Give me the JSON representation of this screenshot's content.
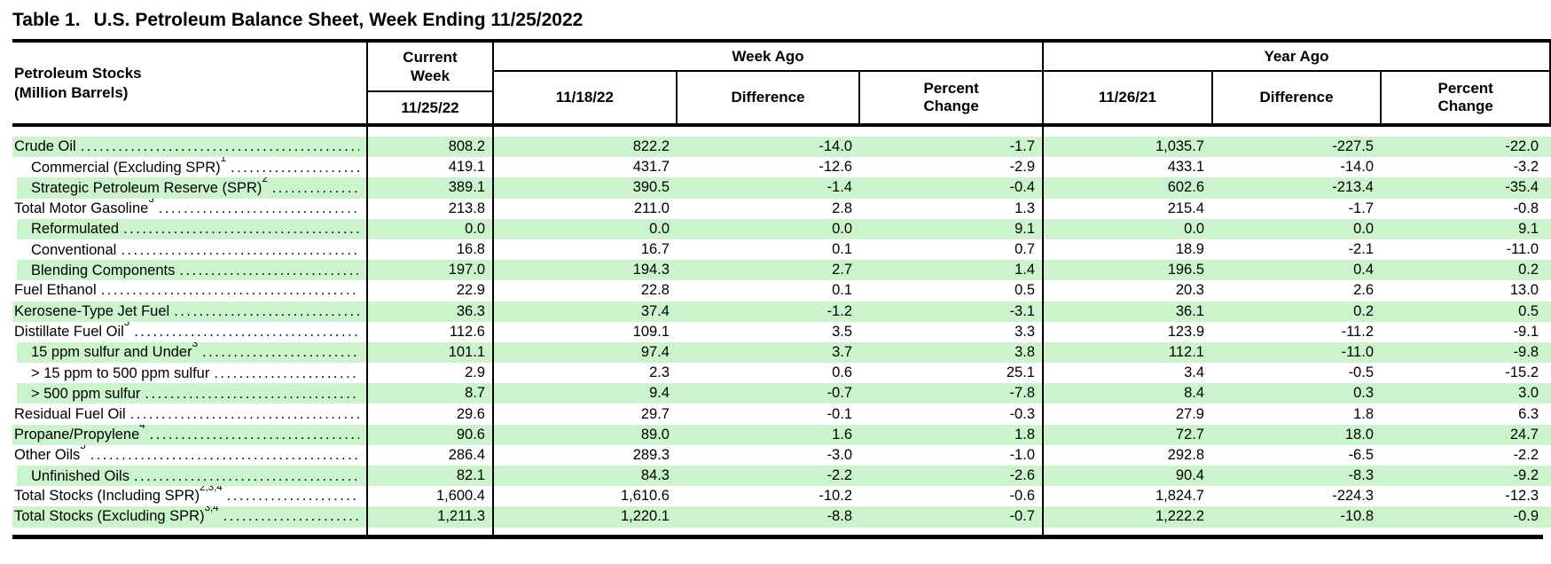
{
  "title": {
    "prefix": "Table 1.",
    "text": "U.S. Petroleum Balance Sheet, Week Ending 11/25/2022"
  },
  "colors": {
    "highlight_green": "#ccf4cc",
    "border": "#000000",
    "text": "#000000"
  },
  "table": {
    "row_header": {
      "line1": "Petroleum Stocks",
      "line2": "(Million Barrels)"
    },
    "col_groups": {
      "current_week": {
        "label": "Current\nWeek",
        "sub": "11/25/22"
      },
      "week_ago": {
        "label": "Week Ago",
        "subs": [
          "11/18/22",
          "Difference",
          "Percent\nChange"
        ]
      },
      "year_ago": {
        "label": "Year Ago",
        "subs": [
          "11/26/21",
          "Difference",
          "Percent\nChange"
        ]
      }
    },
    "rows": [
      {
        "label": "Crude Oil",
        "sup": "",
        "indent": 0,
        "highlight": true,
        "values": [
          "808.2",
          "822.2",
          "-14.0",
          "-1.7",
          "1,035.7",
          "-227.5",
          "-22.0"
        ]
      },
      {
        "label": "Commercial (Excluding SPR)",
        "sup": "1",
        "indent": 1,
        "highlight": false,
        "values": [
          "419.1",
          "431.7",
          "-12.6",
          "-2.9",
          "433.1",
          "-14.0",
          "-3.2"
        ]
      },
      {
        "label": "Strategic Petroleum Reserve (SPR)",
        "sup": "2",
        "indent": 1,
        "highlight": true,
        "values": [
          "389.1",
          "390.5",
          "-1.4",
          "-0.4",
          "602.6",
          "-213.4",
          "-35.4"
        ]
      },
      {
        "label": "Total Motor Gasoline",
        "sup": "3",
        "indent": 0,
        "highlight": false,
        "values": [
          "213.8",
          "211.0",
          "2.8",
          "1.3",
          "215.4",
          "-1.7",
          "-0.8"
        ]
      },
      {
        "label": "Reformulated",
        "sup": "",
        "indent": 1,
        "highlight": true,
        "values": [
          "0.0",
          "0.0",
          "0.0",
          "9.1",
          "0.0",
          "0.0",
          "9.1"
        ]
      },
      {
        "label": "Conventional",
        "sup": "",
        "indent": 1,
        "highlight": false,
        "values": [
          "16.8",
          "16.7",
          "0.1",
          "0.7",
          "18.9",
          "-2.1",
          "-11.0"
        ]
      },
      {
        "label": "Blending Components",
        "sup": "",
        "indent": 1,
        "highlight": true,
        "values": [
          "197.0",
          "194.3",
          "2.7",
          "1.4",
          "196.5",
          "0.4",
          "0.2"
        ]
      },
      {
        "label": "Fuel Ethanol",
        "sup": "",
        "indent": 0,
        "highlight": false,
        "values": [
          "22.9",
          "22.8",
          "0.1",
          "0.5",
          "20.3",
          "2.6",
          "13.0"
        ]
      },
      {
        "label": "Kerosene-Type Jet Fuel",
        "sup": "",
        "indent": 0,
        "highlight": true,
        "values": [
          "36.3",
          "37.4",
          "-1.2",
          "-3.1",
          "36.1",
          "0.2",
          "0.5"
        ]
      },
      {
        "label": "Distillate Fuel Oil",
        "sup": "3",
        "indent": 0,
        "highlight": false,
        "values": [
          "112.6",
          "109.1",
          "3.5",
          "3.3",
          "123.9",
          "-11.2",
          "-9.1"
        ]
      },
      {
        "label": "15 ppm sulfur and Under",
        "sup": "3",
        "indent": 1,
        "highlight": true,
        "values": [
          "101.1",
          "97.4",
          "3.7",
          "3.8",
          "112.1",
          "-11.0",
          "-9.8"
        ]
      },
      {
        "label": "> 15 ppm to 500 ppm sulfur",
        "sup": "",
        "indent": 1,
        "highlight": false,
        "values": [
          "2.9",
          "2.3",
          "0.6",
          "25.1",
          "3.4",
          "-0.5",
          "-15.2"
        ]
      },
      {
        "label": "> 500 ppm sulfur",
        "sup": "",
        "indent": 1,
        "highlight": true,
        "values": [
          "8.7",
          "9.4",
          "-0.7",
          "-7.8",
          "8.4",
          "0.3",
          "3.0"
        ]
      },
      {
        "label": "Residual Fuel Oil",
        "sup": "",
        "indent": 0,
        "highlight": false,
        "values": [
          "29.6",
          "29.7",
          "-0.1",
          "-0.3",
          "27.9",
          "1.8",
          "6.3"
        ]
      },
      {
        "label": "Propane/Propylene",
        "sup": "4",
        "indent": 0,
        "highlight": true,
        "values": [
          "90.6",
          "89.0",
          "1.6",
          "1.8",
          "72.7",
          "18.0",
          "24.7"
        ]
      },
      {
        "label": "Other Oils",
        "sup": "5",
        "indent": 0,
        "highlight": false,
        "values": [
          "286.4",
          "289.3",
          "-3.0",
          "-1.0",
          "292.8",
          "-6.5",
          "-2.2"
        ]
      },
      {
        "label": "Unfinished Oils",
        "sup": "",
        "indent": 1,
        "highlight": true,
        "values": [
          "82.1",
          "84.3",
          "-2.2",
          "-2.6",
          "90.4",
          "-8.3",
          "-9.2"
        ]
      },
      {
        "label": "Total Stocks (Including SPR)",
        "sup": "2,3,4",
        "indent": 0,
        "highlight": false,
        "values": [
          "1,600.4",
          "1,610.6",
          "-10.2",
          "-0.6",
          "1,824.7",
          "-224.3",
          "-12.3"
        ]
      },
      {
        "label": "Total Stocks (Excluding SPR)",
        "sup": "3,4",
        "indent": 0,
        "highlight": true,
        "values": [
          "1,211.3",
          "1,220.1",
          "-8.8",
          "-0.7",
          "1,222.2",
          "-10.8",
          "-0.9"
        ]
      }
    ]
  }
}
